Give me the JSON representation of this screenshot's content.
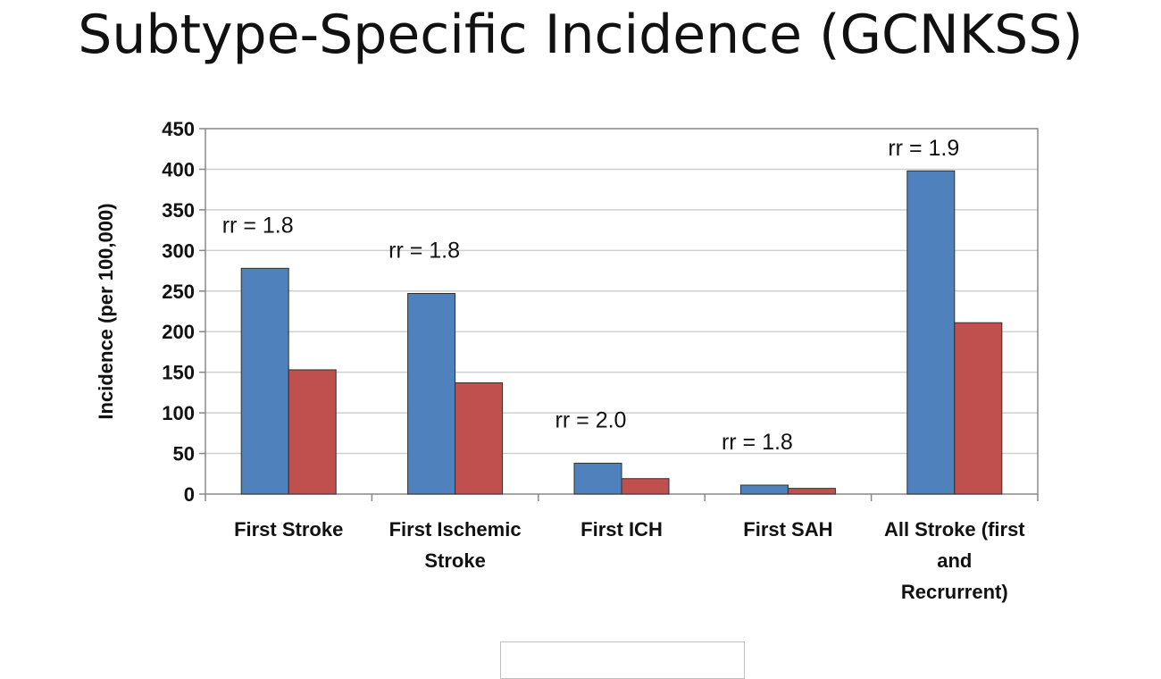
{
  "slide": {
    "title": "Subtype-Specific Incidence (GCNKSS)"
  },
  "colors": {
    "series_1": "#4f81bd",
    "series_2": "#c0504d",
    "grid": "#d0d0d0",
    "axis": "#888888"
  },
  "chart_data": {
    "type": "bar",
    "ylabel": "Incidence (per 100,000)",
    "ylim": [
      0,
      450
    ],
    "yticks": [
      0,
      50,
      100,
      150,
      200,
      250,
      300,
      350,
      400,
      450
    ],
    "grid": true,
    "categories": [
      [
        "First Stroke"
      ],
      [
        "First Ischemic",
        "Stroke"
      ],
      [
        "First ICH"
      ],
      [
        "First SAH"
      ],
      [
        "All Stroke (first",
        "and",
        "Recrurrent)"
      ]
    ],
    "series": [
      {
        "values": [
          278,
          247,
          38,
          11,
          398
        ]
      },
      {
        "values": [
          153,
          137,
          19,
          7,
          211
        ]
      }
    ],
    "annotations": [
      "rr = 1.8",
      "rr = 1.8",
      "rr = 2.0",
      "rr = 1.8",
      "rr = 1.9"
    ]
  }
}
